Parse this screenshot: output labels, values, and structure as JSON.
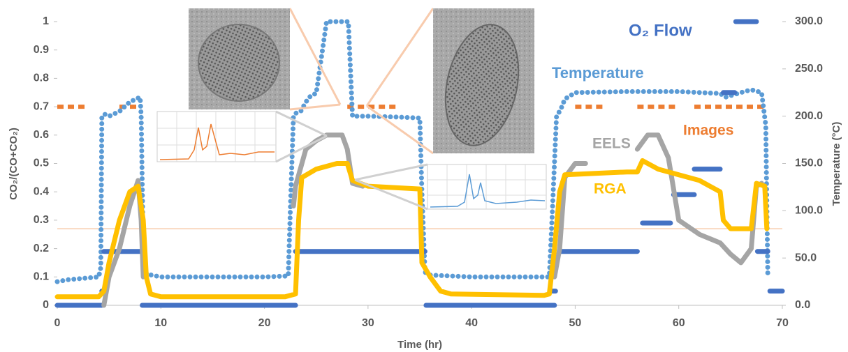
{
  "chart_data": {
    "type": "line",
    "xlabel": "Time (hr)",
    "ylabel": "CO₂/(CO+CO₂)",
    "y2label": "Temperature (°C)",
    "xlim": [
      0,
      70
    ],
    "xticks": [
      0,
      10,
      20,
      30,
      40,
      50,
      60,
      70
    ],
    "ylim": [
      0,
      1
    ],
    "yticks": [
      0,
      0.1,
      0.2,
      0.3,
      0.4,
      0.5,
      0.6,
      0.7,
      0.8,
      0.9,
      1
    ],
    "y2lim": [
      0,
      300
    ],
    "y2ticks": [
      {
        "value": 0,
        "label": "0.0"
      },
      {
        "value": 50,
        "label": "50.0"
      },
      {
        "value": 100,
        "label": "100.0"
      },
      {
        "value": 150,
        "label": "150.0"
      },
      {
        "value": 200,
        "label": "200.0"
      },
      {
        "value": 250,
        "label": "250.0"
      },
      {
        "value": 300,
        "label": "300.0"
      }
    ],
    "hline": {
      "value": 0.27,
      "color": "#f4b183"
    },
    "series": [
      {
        "name": "Images",
        "color": "#ed7d31",
        "line_style": "dashed",
        "x": [
          0,
          3,
          4,
          6,
          8,
          9,
          28,
          33,
          34,
          50,
          53,
          54,
          56,
          60,
          61,
          61.5,
          68.5
        ],
        "values": [
          0.7,
          0.7,
          null,
          0.7,
          0.7,
          null,
          0.7,
          0.7,
          null,
          0.7,
          0.7,
          null,
          0.7,
          0.7,
          null,
          0.7,
          0.7
        ]
      },
      {
        "name": "Temperature",
        "color": "#5b9bd5",
        "line_style": "dotted",
        "axis": "y2",
        "x": [
          0,
          1,
          2,
          3,
          4,
          4.2,
          4.3,
          4.6,
          5,
          6,
          7,
          8,
          8.1,
          8.3,
          8.6,
          10,
          15,
          20,
          22.3,
          22.5,
          22.8,
          23,
          23.5,
          24,
          24.5,
          25,
          26,
          27,
          27.8,
          28.1,
          28.5,
          30,
          33,
          35,
          35.2,
          35.5,
          36,
          40,
          45,
          47.5,
          47.8,
          48.2,
          48.6,
          49,
          50,
          55,
          60,
          64,
          64.5,
          66,
          67,
          68,
          68.4,
          68.6
        ],
        "values": [
          25,
          27,
          28,
          29,
          30,
          40,
          200,
          202,
          200,
          205,
          215,
          220,
          200,
          60,
          33,
          30,
          30,
          30,
          31,
          100,
          200,
          203,
          205,
          215,
          222,
          224,
          300,
          300,
          300,
          300,
          200,
          200,
          199,
          198,
          120,
          35,
          32,
          30,
          30,
          30,
          100,
          200,
          207,
          218,
          225,
          226,
          226,
          224,
          220,
          225,
          228,
          225,
          190,
          30
        ]
      },
      {
        "name": "O₂ Flow",
        "color": "#4472c4",
        "line_style": "solid",
        "x": [
          0,
          4.3,
          4.3,
          4.3,
          4.5,
          4.5,
          4.5,
          8,
          8,
          8.2,
          23,
          23,
          23,
          35.5,
          35.5,
          35.6,
          48,
          48,
          47.8,
          48.1,
          48.1,
          48.5,
          56,
          56,
          56.5,
          59.2,
          59.2,
          59.5,
          61.5,
          61.5,
          61.5,
          64,
          64,
          64.3,
          65.4,
          65.4,
          65.5,
          67.5,
          67.5,
          67.6,
          68.6,
          68.6,
          68.8,
          70
        ],
        "values": [
          0,
          0,
          null,
          0.05,
          0.05,
          null,
          0.19,
          0.19,
          null,
          0,
          0,
          null,
          0.19,
          0.19,
          null,
          0,
          0,
          null,
          0.05,
          0.05,
          null,
          0.19,
          0.19,
          null,
          0.29,
          0.29,
          null,
          0.39,
          0.39,
          null,
          0.48,
          0.48,
          null,
          0.75,
          0.75,
          null,
          1,
          1,
          null,
          0.19,
          0.19,
          null,
          0.05,
          0.05
        ]
      },
      {
        "name": "EELS",
        "color": "#a5a5a5",
        "line_style": "solid",
        "x": [
          4.5,
          5,
          5.5,
          6,
          7,
          7.8,
          8.1,
          8.3,
          15,
          22.8,
          23,
          24,
          25,
          26,
          27.5,
          28,
          28.5,
          29.5,
          40,
          48,
          48.5,
          49,
          50,
          51,
          53,
          56,
          57,
          58,
          59,
          60,
          62,
          64,
          65,
          66,
          67,
          67.5,
          68
        ],
        "values": [
          0,
          0.1,
          0.15,
          0.2,
          0.35,
          0.44,
          0.3,
          0.1,
          null,
          0.35,
          0.42,
          0.55,
          0.58,
          0.6,
          0.6,
          0.55,
          0.43,
          0.42,
          null,
          0.1,
          0.2,
          0.45,
          0.5,
          0.5,
          null,
          0.55,
          0.6,
          0.6,
          0.52,
          0.3,
          0.25,
          0.22,
          0.18,
          0.15,
          0.2,
          0.42,
          0.43
        ]
      },
      {
        "name": "RGA",
        "color": "#ffc000",
        "line_style": "solid",
        "x": [
          0,
          4,
          4.5,
          5,
          6,
          7,
          7.8,
          8.3,
          8.6,
          9,
          10,
          22,
          23,
          23.3,
          23.6,
          25,
          27,
          28,
          28.5,
          30,
          35,
          35.2,
          36,
          37,
          38,
          47,
          47.5,
          48,
          48.5,
          49,
          55,
          56,
          56.5,
          58,
          62,
          64,
          64.3,
          65,
          67,
          67.5,
          68.3,
          68.5
        ],
        "values": [
          0.03,
          0.03,
          0.05,
          0.15,
          0.3,
          0.4,
          0.42,
          0.3,
          0.1,
          0.04,
          0.03,
          0.03,
          0.04,
          0.3,
          0.45,
          0.48,
          0.5,
          0.5,
          0.44,
          0.42,
          0.41,
          0.15,
          0.1,
          0.05,
          0.04,
          0.035,
          0.04,
          0.2,
          0.4,
          0.46,
          0.47,
          0.47,
          0.51,
          0.48,
          0.44,
          0.4,
          0.3,
          0.27,
          0.27,
          0.43,
          0.42,
          0.27
        ]
      }
    ]
  }
}
